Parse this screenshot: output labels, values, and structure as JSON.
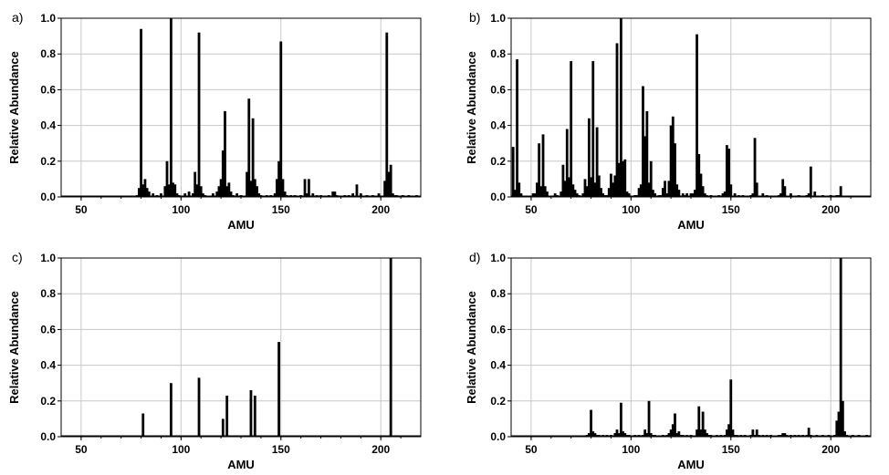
{
  "chart_data": [
    {
      "panel": "a)",
      "type": "bar",
      "xlabel": "AMU",
      "ylabel": "Relative Abundance",
      "xlim": [
        40,
        220
      ],
      "ylim": [
        0,
        1.0
      ],
      "xticks": [
        "50",
        "100",
        "150",
        "200"
      ],
      "yticks": [
        "0.0",
        "0.2",
        "0.4",
        "0.6",
        "0.8",
        "1.0"
      ],
      "grid": true,
      "x": [
        78,
        79,
        80,
        81,
        82,
        83,
        84,
        86,
        88,
        90,
        92,
        93,
        94,
        95,
        96,
        97,
        98,
        99,
        102,
        104,
        106,
        107,
        108,
        109,
        110,
        111,
        112,
        116,
        118,
        119,
        120,
        121,
        122,
        123,
        124,
        125,
        126,
        128,
        130,
        133,
        134,
        135,
        136,
        137,
        138,
        139,
        140,
        143,
        145,
        147,
        148,
        149,
        150,
        151,
        152,
        153,
        155,
        157,
        160,
        162,
        163,
        164,
        166,
        168,
        170,
        174,
        176,
        177,
        178,
        182,
        184,
        186,
        188,
        190,
        193,
        196,
        199,
        202,
        203,
        204,
        205,
        206,
        207,
        208,
        211,
        214,
        218
      ],
      "values": [
        0.01,
        0.05,
        0.94,
        0.07,
        0.1,
        0.05,
        0.03,
        0.02,
        0.01,
        0.02,
        0.06,
        0.2,
        0.07,
        1.0,
        0.08,
        0.07,
        0.02,
        0.01,
        0.02,
        0.03,
        0.02,
        0.14,
        0.07,
        0.92,
        0.06,
        0.02,
        0.01,
        0.02,
        0.03,
        0.06,
        0.1,
        0.26,
        0.48,
        0.06,
        0.08,
        0.03,
        0.01,
        0.02,
        0.01,
        0.14,
        0.55,
        0.09,
        0.44,
        0.1,
        0.06,
        0.02,
        0.01,
        0.01,
        0.01,
        0.02,
        0.1,
        0.2,
        0.87,
        0.1,
        0.03,
        0.01,
        0.01,
        0.01,
        0.01,
        0.1,
        0.02,
        0.1,
        0.02,
        0.01,
        0.01,
        0.01,
        0.03,
        0.03,
        0.01,
        0.01,
        0.01,
        0.02,
        0.07,
        0.02,
        0.01,
        0.01,
        0.02,
        0.09,
        0.92,
        0.14,
        0.18,
        0.02,
        0.01,
        0.01,
        0.01,
        0.01,
        0.01
      ]
    },
    {
      "panel": "b)",
      "type": "bar",
      "xlabel": "AMU",
      "ylabel": "Relative Abundance",
      "xlim": [
        40,
        220
      ],
      "ylim": [
        0,
        1.0
      ],
      "xticks": [
        "50",
        "100",
        "150",
        "200"
      ],
      "yticks": [
        "0.0",
        "0.2",
        "0.4",
        "0.6",
        "0.8",
        "1.0"
      ],
      "grid": true,
      "x": [
        41,
        42,
        43,
        44,
        45,
        51,
        52,
        53,
        54,
        55,
        56,
        57,
        58,
        62,
        63,
        65,
        66,
        67,
        68,
        69,
        70,
        71,
        72,
        73,
        74,
        76,
        77,
        78,
        79,
        80,
        81,
        82,
        83,
        84,
        85,
        86,
        87,
        88,
        89,
        90,
        91,
        92,
        93,
        94,
        95,
        96,
        97,
        98,
        99,
        102,
        103,
        104,
        105,
        106,
        107,
        108,
        109,
        110,
        111,
        112,
        114,
        115,
        116,
        117,
        118,
        119,
        120,
        121,
        122,
        123,
        124,
        126,
        127,
        128,
        130,
        131,
        132,
        133,
        134,
        135,
        136,
        137,
        138,
        140,
        144,
        146,
        147,
        148,
        149,
        150,
        152,
        154,
        156,
        160,
        161,
        162,
        163,
        166,
        168,
        174,
        175,
        176,
        177,
        180,
        184,
        188,
        189,
        190,
        192,
        196,
        200,
        203,
        204,
        205
      ],
      "values": [
        0.28,
        0.04,
        0.77,
        0.08,
        0.02,
        0.02,
        0.02,
        0.08,
        0.3,
        0.06,
        0.35,
        0.06,
        0.03,
        0.02,
        0.01,
        0.03,
        0.18,
        0.09,
        0.38,
        0.11,
        0.76,
        0.07,
        0.04,
        0.02,
        0.01,
        0.02,
        0.1,
        0.06,
        0.44,
        0.11,
        0.76,
        0.08,
        0.39,
        0.12,
        0.05,
        0.02,
        0.01,
        0.01,
        0.05,
        0.13,
        0.08,
        0.12,
        0.86,
        0.19,
        1.0,
        0.2,
        0.21,
        0.03,
        0.02,
        0.01,
        0.01,
        0.05,
        0.07,
        0.62,
        0.34,
        0.48,
        0.08,
        0.2,
        0.04,
        0.02,
        0.01,
        0.01,
        0.05,
        0.09,
        0.02,
        0.09,
        0.4,
        0.45,
        0.3,
        0.07,
        0.04,
        0.02,
        0.01,
        0.02,
        0.02,
        0.02,
        0.04,
        0.91,
        0.24,
        0.13,
        0.06,
        0.02,
        0.01,
        0.01,
        0.01,
        0.02,
        0.03,
        0.29,
        0.27,
        0.07,
        0.02,
        0.01,
        0.01,
        0.01,
        0.02,
        0.33,
        0.08,
        0.02,
        0.01,
        0.01,
        0.02,
        0.1,
        0.06,
        0.02,
        0.01,
        0.01,
        0.02,
        0.17,
        0.03,
        0.01,
        0.01,
        0.01,
        0.01,
        0.06
      ]
    },
    {
      "panel": "c)",
      "type": "bar",
      "xlabel": "AMU",
      "ylabel": "Relative Abundance",
      "xlim": [
        40,
        220
      ],
      "ylim": [
        0,
        1.0
      ],
      "xticks": [
        "50",
        "100",
        "150",
        "200"
      ],
      "yticks": [
        "0.0",
        "0.2",
        "0.4",
        "0.6",
        "0.8",
        "1.0"
      ],
      "grid": true,
      "x": [
        81,
        95,
        109,
        121,
        123,
        135,
        137,
        149,
        205
      ],
      "values": [
        0.13,
        0.3,
        0.33,
        0.1,
        0.23,
        0.26,
        0.23,
        0.53,
        1.0
      ]
    },
    {
      "panel": "d)",
      "type": "bar",
      "xlabel": "AMU",
      "ylabel": "Relative Abundance",
      "xlim": [
        40,
        220
      ],
      "ylim": [
        0,
        1.0
      ],
      "xticks": [
        "50",
        "100",
        "150",
        "200"
      ],
      "yticks": [
        "0.0",
        "0.2",
        "0.4",
        "0.6",
        "0.8",
        "1.0"
      ],
      "grid": true,
      "x": [
        78,
        79,
        80,
        81,
        82,
        83,
        84,
        86,
        88,
        90,
        92,
        93,
        94,
        95,
        96,
        97,
        98,
        99,
        102,
        104,
        106,
        107,
        108,
        109,
        110,
        111,
        112,
        116,
        118,
        119,
        120,
        121,
        122,
        123,
        124,
        125,
        126,
        128,
        130,
        133,
        134,
        135,
        136,
        137,
        138,
        139,
        140,
        143,
        145,
        147,
        148,
        149,
        150,
        151,
        152,
        153,
        155,
        157,
        160,
        161,
        162,
        163,
        164,
        166,
        168,
        170,
        174,
        175,
        176,
        177,
        178,
        180,
        182,
        184,
        186,
        188,
        189,
        190,
        193,
        196,
        199,
        202,
        203,
        204,
        205,
        206,
        207,
        208,
        211,
        214,
        218
      ],
      "values": [
        0.01,
        0.02,
        0.15,
        0.03,
        0.02,
        0.01,
        0.01,
        0.01,
        0.01,
        0.01,
        0.02,
        0.04,
        0.02,
        0.19,
        0.03,
        0.02,
        0.01,
        0.01,
        0.01,
        0.01,
        0.01,
        0.04,
        0.02,
        0.2,
        0.02,
        0.01,
        0.01,
        0.01,
        0.01,
        0.02,
        0.04,
        0.07,
        0.13,
        0.02,
        0.03,
        0.01,
        0.01,
        0.01,
        0.01,
        0.04,
        0.17,
        0.04,
        0.14,
        0.04,
        0.02,
        0.01,
        0.01,
        0.01,
        0.01,
        0.01,
        0.04,
        0.07,
        0.32,
        0.04,
        0.01,
        0.01,
        0.01,
        0.01,
        0.01,
        0.04,
        0.01,
        0.04,
        0.01,
        0.01,
        0.01,
        0.01,
        0.01,
        0.01,
        0.02,
        0.02,
        0.01,
        0.01,
        0.01,
        0.01,
        0.01,
        0.01,
        0.05,
        0.01,
        0.01,
        0.01,
        0.01,
        0.01,
        0.09,
        0.14,
        1.0,
        0.2,
        0.03,
        0.01,
        0.01,
        0.01,
        0.01
      ]
    }
  ]
}
